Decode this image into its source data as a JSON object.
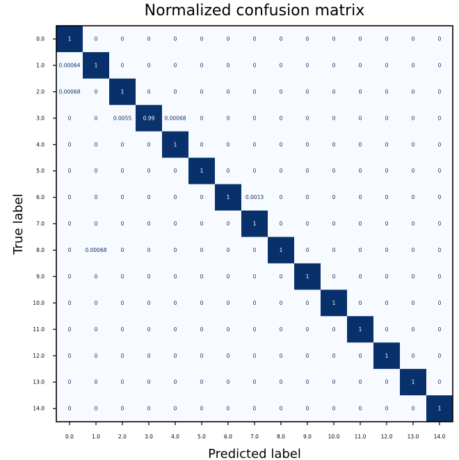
{
  "chart_data": {
    "type": "heatmap",
    "title": "Normalized confusion matrix",
    "xlabel": "Predicted label",
    "ylabel": "True label",
    "x_tick_labels": [
      "0.0",
      "1.0",
      "2.0",
      "3.0",
      "4.0",
      "5.0",
      "6.0",
      "7.0",
      "8.0",
      "9.0",
      "10.0",
      "11.0",
      "12.0",
      "13.0",
      "14.0"
    ],
    "y_tick_labels": [
      "0.0",
      "1.0",
      "2.0",
      "3.0",
      "4.0",
      "5.0",
      "6.0",
      "7.0",
      "8.0",
      "9.0",
      "10.0",
      "11.0",
      "12.0",
      "13.0",
      "14.0"
    ],
    "value_range": [
      0,
      1
    ],
    "colormap": "Blues",
    "low_color": "#f7fbff",
    "high_color": "#08306b",
    "text_dark": "#08306b",
    "text_light": "#ffffff",
    "values": [
      [
        1,
        0,
        0,
        0,
        0,
        0,
        0,
        0,
        0,
        0,
        0,
        0,
        0,
        0,
        0
      ],
      [
        0.00064,
        1,
        0,
        0,
        0,
        0,
        0,
        0,
        0,
        0,
        0,
        0,
        0,
        0,
        0
      ],
      [
        0.00068,
        0,
        1,
        0,
        0,
        0,
        0,
        0,
        0,
        0,
        0,
        0,
        0,
        0,
        0
      ],
      [
        0,
        0,
        0.0055,
        0.99,
        0.00068,
        0,
        0,
        0,
        0,
        0,
        0,
        0,
        0,
        0,
        0
      ],
      [
        0,
        0,
        0,
        0,
        1,
        0,
        0,
        0,
        0,
        0,
        0,
        0,
        0,
        0,
        0
      ],
      [
        0,
        0,
        0,
        0,
        0,
        1,
        0,
        0,
        0,
        0,
        0,
        0,
        0,
        0,
        0
      ],
      [
        0,
        0,
        0,
        0,
        0,
        0,
        1,
        0.0013,
        0,
        0,
        0,
        0,
        0,
        0,
        0
      ],
      [
        0,
        0,
        0,
        0,
        0,
        0,
        0,
        1,
        0,
        0,
        0,
        0,
        0,
        0,
        0
      ],
      [
        0,
        0.00068,
        0,
        0,
        0,
        0,
        0,
        0,
        1,
        0,
        0,
        0,
        0,
        0,
        0
      ],
      [
        0,
        0,
        0,
        0,
        0,
        0,
        0,
        0,
        0,
        1,
        0,
        0,
        0,
        0,
        0
      ],
      [
        0,
        0,
        0,
        0,
        0,
        0,
        0,
        0,
        0,
        0,
        1,
        0,
        0,
        0,
        0
      ],
      [
        0,
        0,
        0,
        0,
        0,
        0,
        0,
        0,
        0,
        0,
        0,
        1,
        0,
        0,
        0
      ],
      [
        0,
        0,
        0,
        0,
        0,
        0,
        0,
        0,
        0,
        0,
        0,
        0,
        1,
        0,
        0
      ],
      [
        0,
        0,
        0,
        0,
        0,
        0,
        0,
        0,
        0,
        0,
        0,
        0,
        0,
        1,
        0
      ],
      [
        0,
        0,
        0,
        0,
        0,
        0,
        0,
        0,
        0,
        0,
        0,
        0,
        0,
        0,
        1
      ]
    ]
  }
}
